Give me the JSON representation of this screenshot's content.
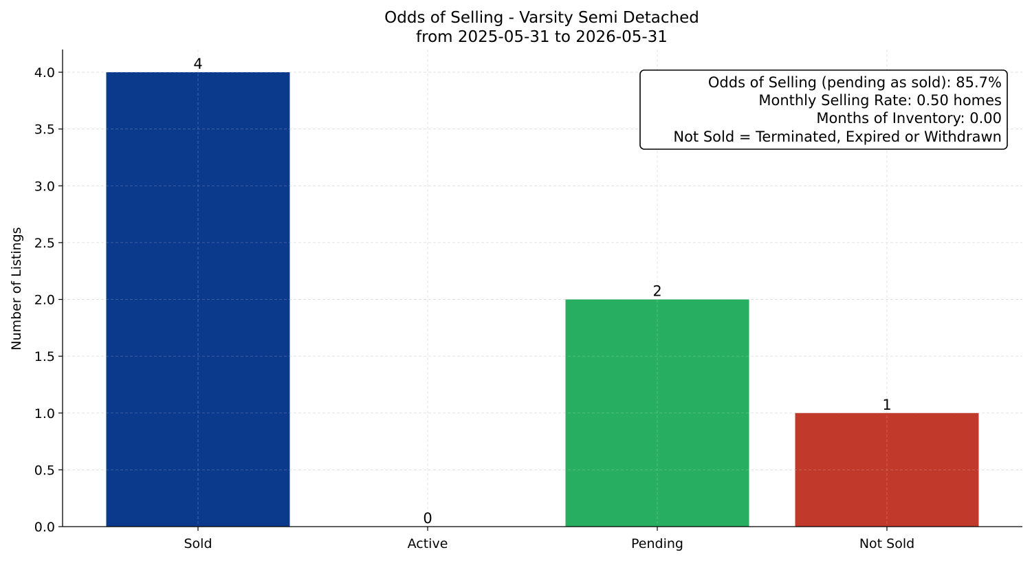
{
  "chart_data": {
    "type": "bar",
    "title": "Odds of Selling - Varsity Semi Detached",
    "subtitle": "from 2025-05-31 to 2026-05-31",
    "xlabel": "",
    "ylabel": "Number of Listings",
    "categories": [
      "Sold",
      "Active",
      "Pending",
      "Not Sold"
    ],
    "values": [
      4,
      0,
      2,
      1
    ],
    "data_labels": [
      "4",
      "0",
      "2",
      "1"
    ],
    "colors": [
      "#0b3a8c",
      "#1f77b4",
      "#27ae60",
      "#c0392b"
    ],
    "ylim": [
      0,
      4.2
    ],
    "yticks": [
      0.0,
      0.5,
      1.0,
      1.5,
      2.0,
      2.5,
      3.0,
      3.5,
      4.0
    ],
    "ytick_labels": [
      "0.0",
      "0.5",
      "1.0",
      "1.5",
      "2.0",
      "2.5",
      "3.0",
      "3.5",
      "4.0"
    ],
    "grid": true,
    "info_box": {
      "placement": "top-right",
      "lines": [
        "Odds of Selling (pending as sold): 85.7%",
        "Monthly Selling Rate: 0.50 homes",
        "Months of Inventory: 0.00",
        "Not Sold = Terminated, Expired or Withdrawn"
      ]
    }
  }
}
